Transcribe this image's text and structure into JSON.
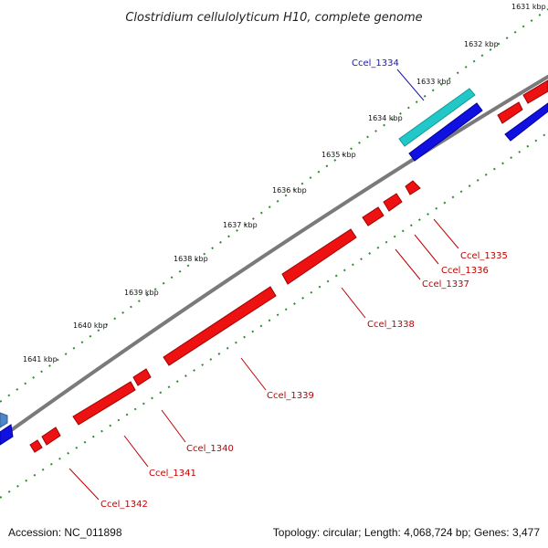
{
  "title": "Clostridium cellulolyticum H10, complete genome",
  "footer": {
    "accession": "Accession: NC_011898",
    "summary": "Topology: circular; Length: 4,068,724 bp; Genes: 3,477"
  },
  "ticks": [
    "1631 kbp",
    "1632 kbp",
    "1633 kbp",
    "1634 kbp",
    "1635 kbp",
    "1636 kbp",
    "1637 kbp",
    "1638 kbp",
    "1639 kbp",
    "1640 kbp",
    "1641 kbp"
  ],
  "genes": {
    "fwd": [
      "Ccel_1334"
    ],
    "rev": [
      "Ccel_1335",
      "Ccel_1336",
      "Ccel_1337",
      "Ccel_1338",
      "Ccel_1339",
      "Ccel_1340",
      "Ccel_1341",
      "Ccel_1342"
    ]
  },
  "colors": {
    "backbone": "#7a7a7a",
    "tick_green": "#2e8b2e",
    "forward_gene": "#1010e0",
    "reverse_gene": "#ee1111",
    "highlight_gene": "#22c8c8",
    "misc_gene": "#4f86c6"
  }
}
